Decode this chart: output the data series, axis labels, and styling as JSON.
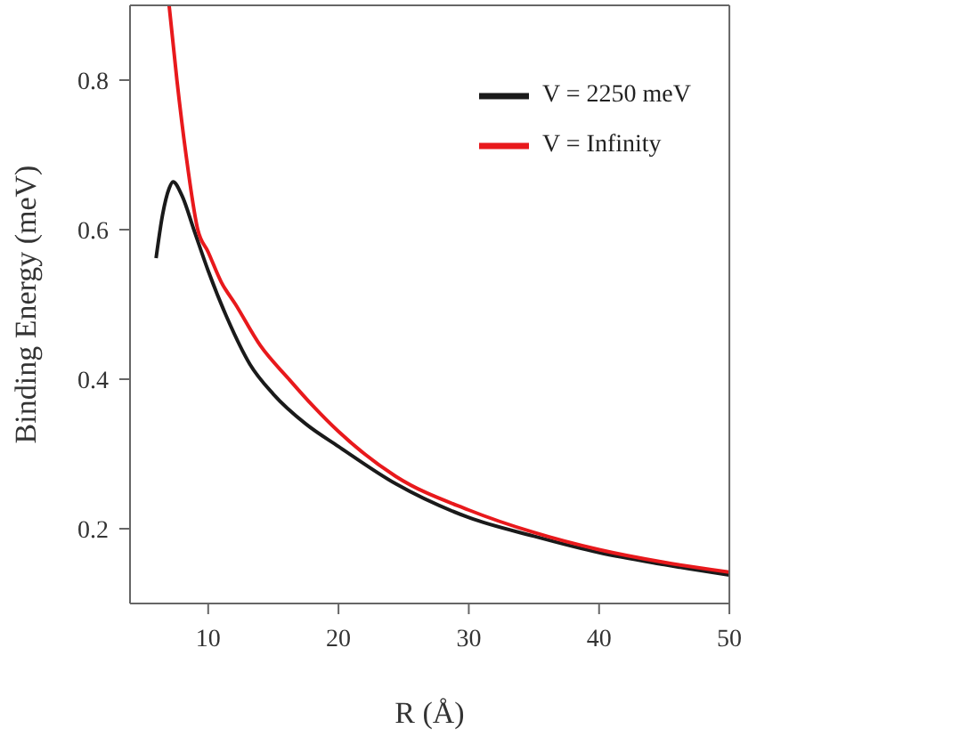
{
  "chart_data": {
    "type": "line",
    "xlabel": "R (Å)",
    "ylabel": "Binding Energy (meV)",
    "xlim": [
      4,
      50
    ],
    "ylim": [
      0.1,
      0.9
    ],
    "xticks": [
      10,
      20,
      30,
      40,
      50
    ],
    "yticks": [
      0.2,
      0.4,
      0.6,
      0.8
    ],
    "legend": "top right",
    "marker": "none",
    "line_style": "solid",
    "series": [
      {
        "name": "V = 2250 meV",
        "color": "#1a1a1a",
        "x": [
          6,
          6.5,
          7,
          7.3,
          8,
          8.9,
          10,
          11.5,
          13.2,
          15,
          17.5,
          20,
          24.4,
          30,
          35,
          40,
          45,
          50
        ],
        "values": [
          0.562,
          0.62,
          0.655,
          0.664,
          0.645,
          0.6,
          0.545,
          0.48,
          0.42,
          0.38,
          0.34,
          0.31,
          0.26,
          0.215,
          0.19,
          0.168,
          0.152,
          0.138
        ]
      },
      {
        "name": "V = Infinity",
        "color": "#e8191c",
        "x": [
          7,
          7.6,
          8.3,
          9.2,
          10,
          11,
          12.1,
          14,
          16.2,
          18,
          20,
          24.4,
          30,
          35,
          40,
          45,
          50
        ],
        "values": [
          0.9,
          0.8,
          0.7,
          0.6,
          0.57,
          0.53,
          0.5,
          0.445,
          0.4,
          0.365,
          0.33,
          0.27,
          0.225,
          0.195,
          0.172,
          0.155,
          0.142
        ]
      }
    ]
  }
}
